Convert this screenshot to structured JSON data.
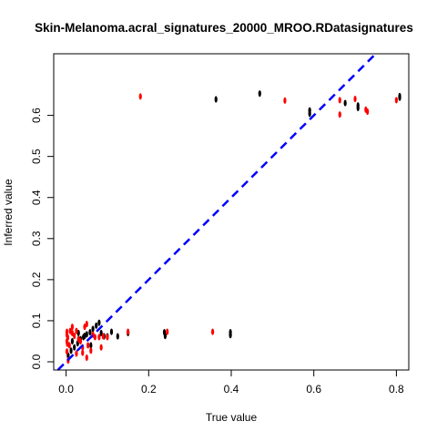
{
  "chart_data": {
    "type": "scatter",
    "title": "Skin-Melanoma.acral_signatures_20000_MROO.RDatasignatures",
    "xlabel": "True value",
    "ylabel": "Inferred value",
    "xlim": [
      -0.03,
      0.83
    ],
    "ylim": [
      -0.02,
      0.75
    ],
    "x_ticks": [
      "0.0",
      "0.2",
      "0.4",
      "0.6",
      "0.8"
    ],
    "y_ticks": [
      "0.0",
      "0.1",
      "0.2",
      "0.3",
      "0.4",
      "0.5",
      "0.6"
    ],
    "grid": false,
    "reference_line": {
      "slope": 1,
      "intercept": 0,
      "color": "#0000ff",
      "style": "dashed"
    },
    "series": [
      {
        "color": "#000000",
        "points": [
          [
            0.363,
            0.639
          ],
          [
            0.469,
            0.653
          ],
          [
            0.59,
            0.612
          ],
          [
            0.59,
            0.604
          ],
          [
            0.676,
            0.63
          ],
          [
            0.707,
            0.624
          ],
          [
            0.707,
            0.618
          ],
          [
            0.808,
            0.647
          ],
          [
            0.808,
            0.643
          ],
          [
            0.005,
            0.015
          ],
          [
            0.012,
            0.027
          ],
          [
            0.02,
            0.035
          ],
          [
            0.028,
            0.045
          ],
          [
            0.035,
            0.055
          ],
          [
            0.042,
            0.06
          ],
          [
            0.05,
            0.067
          ],
          [
            0.058,
            0.072
          ],
          [
            0.065,
            0.08
          ],
          [
            0.073,
            0.088
          ],
          [
            0.08,
            0.095
          ],
          [
            0.085,
            0.07
          ],
          [
            0.092,
            0.062
          ],
          [
            0.1,
            0.062
          ],
          [
            0.11,
            0.073
          ],
          [
            0.125,
            0.062
          ],
          [
            0.15,
            0.07
          ],
          [
            0.238,
            0.072
          ],
          [
            0.24,
            0.063
          ],
          [
            0.398,
            0.072
          ],
          [
            0.398,
            0.065
          ],
          [
            0.03,
            0.07
          ],
          [
            0.045,
            0.063
          ],
          [
            0.06,
            0.04
          ],
          [
            0.015,
            0.05
          ]
        ]
      },
      {
        "color": "#ff0000",
        "points": [
          [
            0.18,
            0.646
          ],
          [
            0.53,
            0.636
          ],
          [
            0.663,
            0.637
          ],
          [
            0.663,
            0.602
          ],
          [
            0.7,
            0.64
          ],
          [
            0.726,
            0.614
          ],
          [
            0.73,
            0.609
          ],
          [
            0.8,
            0.637
          ],
          [
            0.002,
            0.073
          ],
          [
            0.002,
            0.066
          ],
          [
            0.004,
            0.059
          ],
          [
            0.002,
            0.05
          ],
          [
            0.003,
            0.044
          ],
          [
            0.002,
            0.025
          ],
          [
            0.005,
            0.003
          ],
          [
            0.01,
            0.075
          ],
          [
            0.015,
            0.07
          ],
          [
            0.02,
            0.063
          ],
          [
            0.025,
            0.075
          ],
          [
            0.03,
            0.055
          ],
          [
            0.035,
            0.05
          ],
          [
            0.04,
            0.035
          ],
          [
            0.045,
            0.085
          ],
          [
            0.05,
            0.092
          ],
          [
            0.053,
            0.04
          ],
          [
            0.06,
            0.027
          ],
          [
            0.065,
            0.066
          ],
          [
            0.07,
            0.06
          ],
          [
            0.08,
            0.06
          ],
          [
            0.085,
            0.035
          ],
          [
            0.09,
            0.062
          ],
          [
            0.1,
            0.06
          ],
          [
            0.15,
            0.073
          ],
          [
            0.245,
            0.073
          ],
          [
            0.355,
            0.073
          ],
          [
            0.025,
            0.02
          ],
          [
            0.04,
            0.022
          ],
          [
            0.05,
            0.01
          ],
          [
            0.015,
            0.085
          ],
          [
            0.008,
            0.04
          ]
        ]
      }
    ]
  }
}
